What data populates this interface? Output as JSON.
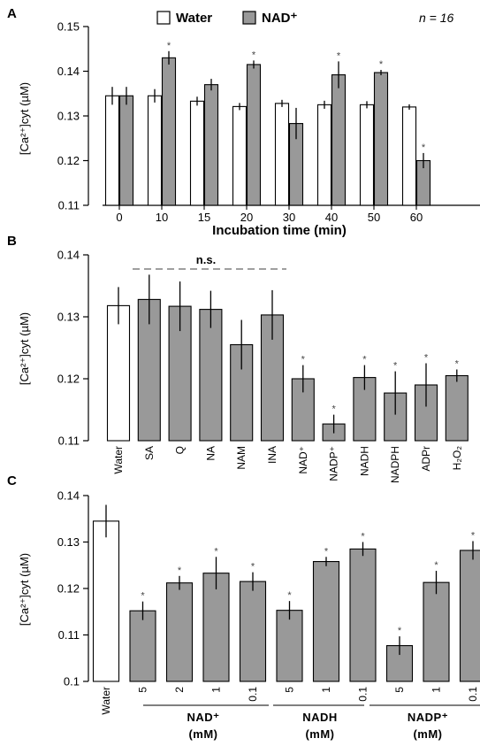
{
  "figure": {
    "panels": [
      {
        "letter": "A",
        "ylabel": "[Ca²⁺]cyt (µM)",
        "xlabel": "Incubation time (min)",
        "note": "n = 16",
        "legend": [
          {
            "label": "Water",
            "fill": "#ffffff"
          },
          {
            "label": "NAD⁺",
            "fill": "#999999"
          }
        ]
      },
      {
        "letter": "B",
        "ylabel": "[Ca²⁺]cyt (µM)",
        "ns_label": "n.s."
      },
      {
        "letter": "C",
        "ylabel": "[Ca²⁺]cyt (µM)",
        "groups": [
          {
            "name": "NAD⁺",
            "unit": "(mM)"
          },
          {
            "name": "NADH",
            "unit": "(mM)"
          },
          {
            "name": "NADP⁺",
            "unit": "(mM)"
          }
        ]
      }
    ],
    "significance_mark": "*"
  },
  "colors": {
    "water_fill": "#ffffff",
    "treatment_fill": "#999999",
    "stroke": "#000000",
    "dash": "#666666"
  },
  "chart_data": [
    {
      "type": "bar",
      "title": "A",
      "xlabel": "Incubation time (min)",
      "ylabel": "[Ca²⁺]cyt (µM)",
      "ylim": [
        0.11,
        0.15
      ],
      "yticks": [
        "0.11",
        "0.12",
        "0.13",
        "0.14",
        "0.15"
      ],
      "categories": [
        "0",
        "10",
        "15",
        "20",
        "30",
        "40",
        "50",
        "60"
      ],
      "legend_position": "top",
      "series": [
        {
          "name": "Water",
          "color": "#ffffff",
          "values": [
            0.1345,
            0.1345,
            0.1333,
            0.1321,
            0.1328,
            0.1325,
            0.1325,
            0.132
          ],
          "errors": [
            0.002,
            0.0015,
            0.001,
            0.0008,
            0.0008,
            0.0009,
            0.0008,
            0.0006
          ],
          "significant": [
            false,
            false,
            false,
            false,
            false,
            false,
            false,
            false
          ]
        },
        {
          "name": "NAD⁺",
          "color": "#999999",
          "values": [
            0.1345,
            0.143,
            0.137,
            0.1415,
            0.1283,
            0.1392,
            0.1397,
            0.12
          ],
          "errors": [
            0.002,
            0.0015,
            0.0013,
            0.0009,
            0.0035,
            0.003,
            0.0006,
            0.0017
          ],
          "significant": [
            false,
            true,
            false,
            true,
            false,
            true,
            true,
            true
          ]
        }
      ]
    },
    {
      "type": "bar",
      "title": "B",
      "ylabel": "[Ca²⁺]cyt (µM)",
      "ylim": [
        0.11,
        0.14
      ],
      "yticks": [
        "0.11",
        "0.12",
        "0.13",
        "0.14"
      ],
      "categories": [
        "Water",
        "SA",
        "Q",
        "NA",
        "NAM",
        "INA",
        "NAD⁺",
        "NADP⁺",
        "NADH",
        "NADPH",
        "ADPr",
        "H₂O₂"
      ],
      "values": [
        0.1318,
        0.1328,
        0.1317,
        0.1312,
        0.1255,
        0.1303,
        0.12,
        0.1127,
        0.1202,
        0.1177,
        0.119,
        0.1205
      ],
      "errors": [
        0.003,
        0.004,
        0.004,
        0.003,
        0.004,
        0.004,
        0.0022,
        0.0015,
        0.002,
        0.0035,
        0.0035,
        0.001
      ],
      "fills": [
        "#ffffff",
        "#999999",
        "#999999",
        "#999999",
        "#999999",
        "#999999",
        "#999999",
        "#999999",
        "#999999",
        "#999999",
        "#999999",
        "#999999"
      ],
      "significant": [
        false,
        false,
        false,
        false,
        false,
        false,
        true,
        true,
        true,
        true,
        true,
        true
      ],
      "annotation": {
        "text": "n.s.",
        "from": "Water",
        "to": "INA"
      }
    },
    {
      "type": "bar",
      "title": "C",
      "ylabel": "[Ca²⁺]cyt (µM)",
      "ylim": [
        0.1,
        0.14
      ],
      "yticks": [
        "0.1",
        "0.11",
        "0.12",
        "0.13",
        "0.14"
      ],
      "categories": [
        "Water",
        "5",
        "2",
        "1",
        "0.1",
        "5",
        "1",
        "0.1",
        "5",
        "1",
        "0.1"
      ],
      "groups": [
        "",
        "NAD⁺ (mM)",
        "NAD⁺ (mM)",
        "NAD⁺ (mM)",
        "NAD⁺ (mM)",
        "NADH (mM)",
        "NADH (mM)",
        "NADH (mM)",
        "NADP⁺ (mM)",
        "NADP⁺ (mM)",
        "NADP⁺ (mM)"
      ],
      "values": [
        0.1345,
        0.1152,
        0.1212,
        0.1233,
        0.1215,
        0.1153,
        0.1258,
        0.1285,
        0.1077,
        0.1213,
        0.1282
      ],
      "errors": [
        0.0035,
        0.002,
        0.0015,
        0.0035,
        0.002,
        0.002,
        0.001,
        0.0015,
        0.002,
        0.0025,
        0.002
      ],
      "fills": [
        "#ffffff",
        "#999999",
        "#999999",
        "#999999",
        "#999999",
        "#999999",
        "#999999",
        "#999999",
        "#999999",
        "#999999",
        "#999999"
      ],
      "significant": [
        false,
        true,
        true,
        true,
        true,
        true,
        true,
        true,
        true,
        true,
        true
      ]
    }
  ]
}
